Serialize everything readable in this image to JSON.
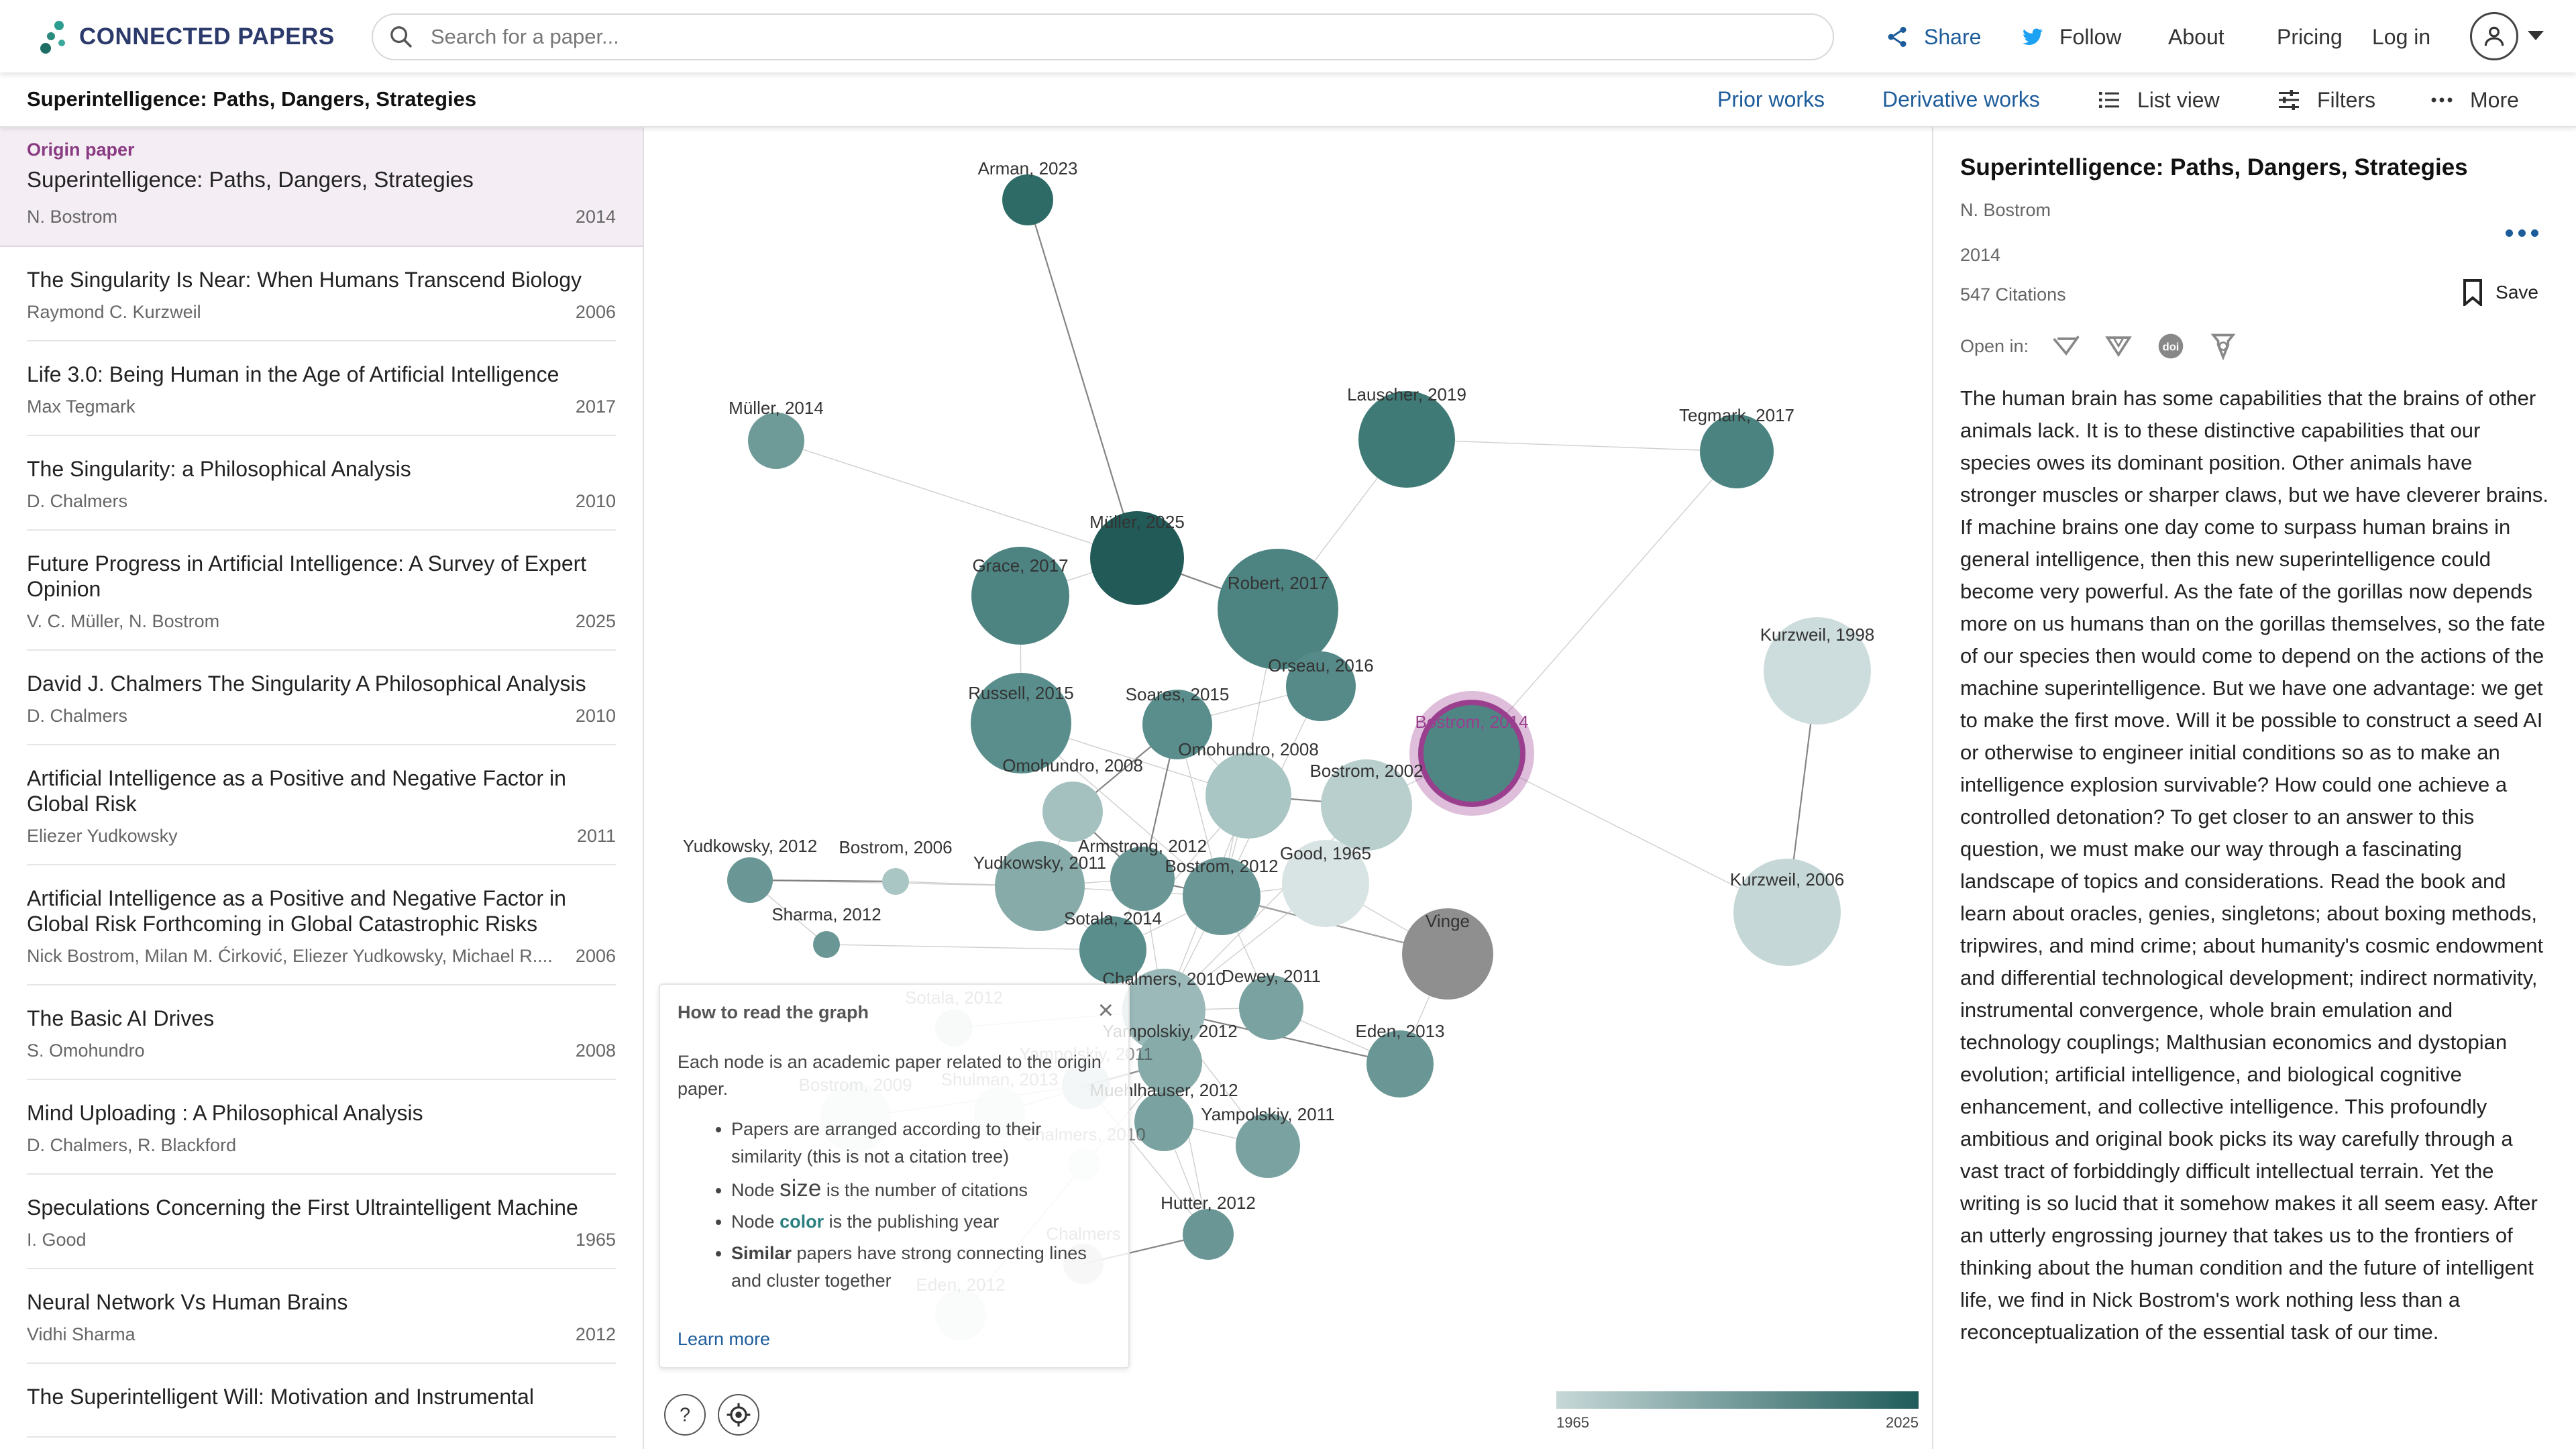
{
  "brand": {
    "name": "CONNECTED PAPERS",
    "color": "#2b3a6b",
    "accent": "#2a9d8f"
  },
  "search": {
    "placeholder": "Search for a paper..."
  },
  "nav": {
    "share": "Share",
    "follow": "Follow",
    "about": "About",
    "pricing": "Pricing",
    "login": "Log in"
  },
  "toolbar": {
    "paper_title": "Superintelligence: Paths, Dangers, Strategies",
    "prior": "Prior works",
    "derivative": "Derivative works",
    "list_view": "List view",
    "filters": "Filters",
    "more": "More"
  },
  "origin": {
    "label": "Origin paper",
    "title": "Superintelligence: Paths, Dangers, Strategies",
    "authors": "N. Bostrom",
    "year": "2014"
  },
  "papers": [
    {
      "title": "The Singularity Is Near: When Humans Transcend Biology",
      "authors": "Raymond C. Kurzweil",
      "year": "2006"
    },
    {
      "title": "Life 3.0: Being Human in the Age of Artificial Intelligence",
      "authors": "Max Tegmark",
      "year": "2017"
    },
    {
      "title": "The Singularity: a Philosophical Analysis",
      "authors": "D. Chalmers",
      "year": "2010"
    },
    {
      "title": "Future Progress in Artificial Intelligence: A Survey of Expert Opinion",
      "authors": "V. C. Müller, N. Bostrom",
      "year": "2025"
    },
    {
      "title": "David J. Chalmers The Singularity A Philosophical Analysis",
      "authors": "D. Chalmers",
      "year": "2010"
    },
    {
      "title": "Artificial Intelligence as a Positive and Negative Factor in Global Risk",
      "authors": "Eliezer Yudkowsky",
      "year": "2011"
    },
    {
      "title": "Artificial Intelligence as a Positive and Negative Factor in Global Risk Forthcoming in Global Catastrophic Risks",
      "authors": "Nick Bostrom, Milan M. Ćirković, Eliezer Yudkowsky, Michael R....",
      "year": "2006"
    },
    {
      "title": "The Basic AI Drives",
      "authors": "S. Omohundro",
      "year": "2008"
    },
    {
      "title": "Mind Uploading : A Philosophical Analysis",
      "authors": "D. Chalmers, R. Blackford",
      "year": ""
    },
    {
      "title": "Speculations Concerning the First Ultraintelligent Machine",
      "authors": "I. Good",
      "year": "1965"
    },
    {
      "title": "Neural Network Vs Human Brains",
      "authors": "Vidhi Sharma",
      "year": "2012"
    },
    {
      "title": "The Superintelligent Will: Motivation and Instrumental",
      "authors": "",
      "year": ""
    }
  ],
  "graph": {
    "nodes": [
      {
        "label": "Arman, 2023",
        "color": "#2e6b66"
      },
      {
        "label": "Müller, 2014",
        "color": "#6e9a98"
      },
      {
        "label": "Lauscher, 2019",
        "color": "#3f7a76"
      },
      {
        "label": "Tegmark, 2017",
        "color": "#4a8380"
      },
      {
        "label": "Müller, 2025",
        "color": "#225a58"
      },
      {
        "label": "Grace, 2017",
        "color": "#4d8482"
      },
      {
        "label": "Robert, 2017",
        "color": "#4d8482"
      },
      {
        "label": "Orseau, 2016",
        "color": "#558a88"
      },
      {
        "label": "Kurzweil, 1998",
        "color": "#cddcdc"
      },
      {
        "label": "Russell, 2015",
        "color": "#5a8e8c"
      },
      {
        "label": "Soares, 2015",
        "color": "#5a8e8c"
      },
      {
        "label": "Bostrom, 2014",
        "color": "#4f8684"
      },
      {
        "label": "Omohundro, 2008",
        "color": "#a4c1c0"
      },
      {
        "label": "Omohundro, 2008",
        "color": "#a9c5c4"
      },
      {
        "label": "Bostrom, 2002",
        "color": "#b9cfce"
      },
      {
        "label": "Good, 1965",
        "color": "#d8e4e3"
      },
      {
        "label": "Yudkowsky, 2012",
        "color": "#6a9795"
      },
      {
        "label": "Bostrom, 2006",
        "color": "#a9c5c4"
      },
      {
        "label": "Yudkowsky, 2011",
        "color": "#86aba9"
      },
      {
        "label": "Armstrong, 2012",
        "color": "#6a9795"
      },
      {
        "label": "Bostrom, 2012",
        "color": "#6a9795"
      },
      {
        "label": "Kurzweil, 2006",
        "color": "#c5d7d6"
      },
      {
        "label": "Sharma, 2012",
        "color": "#6a9795"
      },
      {
        "label": "Sotala, 2014",
        "color": "#5a8e8c"
      },
      {
        "label": "Vinge",
        "color": "#8f8f8f"
      },
      {
        "label": "Sotala, 2012",
        "color": "#c9dad9"
      },
      {
        "label": "Chalmers, 2010",
        "color": "#9ab9b8"
      },
      {
        "label": "Dewey, 2011",
        "color": "#7aa2a0"
      },
      {
        "label": "Eden, 2013",
        "color": "#6a9795"
      },
      {
        "label": "Yampolskiy, 2012",
        "color": "#86aba9"
      },
      {
        "label": "Yampolskiy, 2011",
        "color": "#a9c5c4"
      },
      {
        "label": "Bostrom, 2009",
        "color": "#d8e4e3"
      },
      {
        "label": "Shulman, 2013",
        "color": "#d8e4e3"
      },
      {
        "label": "Muehlhauser, 2012",
        "color": "#7aa2a0"
      },
      {
        "label": "Yampolskiy, 2011",
        "color": "#7aa2a0"
      },
      {
        "label": "Chalmers, 2010",
        "color": "#dde7e6"
      },
      {
        "label": "Hutter, 2012",
        "color": "#6a9795"
      },
      {
        "label": "Chalmers",
        "color": "#c4c4c4"
      },
      {
        "label": "Eden, 2012",
        "color": "#d8e4e3"
      }
    ],
    "howto": {
      "title": "How to read the graph",
      "intro": "Each node is an academic paper related to the origin paper.",
      "b1": "Papers are arranged according to their similarity (this is not a citation tree)",
      "b2_pre": "Node ",
      "b2_em": "size",
      "b2_post": " is the number of citations",
      "b3_pre": "Node ",
      "b3_em": "color",
      "b3_post": " is the publishing year",
      "b4_em": "Similar",
      "b4_post": " papers have strong connecting lines and cluster together",
      "learn": "Learn more"
    },
    "legend": {
      "min": "1965",
      "max": "2025",
      "low_color": "#c7d8d8",
      "high_color": "#1f5c5a"
    }
  },
  "details": {
    "title": "Superintelligence: Paths, Dangers, Strategies",
    "authors": "N. Bostrom",
    "year": "2014",
    "citations": "547 Citations",
    "save": "Save",
    "open_in": "Open in:",
    "abstract": "The human brain has some capabilities that the brains of other animals lack. It is to these distinctive capabilities that our species owes its dominant position. Other animals have stronger muscles or sharper claws, but we have cleverer brains. If machine brains one day come to surpass human brains in general intelligence, then this new superintelligence could become very powerful. As the fate of the gorillas now depends more on us humans than on the gorillas themselves, so the fate of our species then would come to depend on the actions of the machine superintelligence. But we have one advantage: we get to make the first move. Will it be possible to construct a seed AI or otherwise to engineer initial conditions so as to make an intelligence explosion survivable? How could one achieve a controlled detonation? To get closer to an answer to this question, we must make our way through a fascinating landscape of topics and considerations. Read the book and learn about oracles, genies, singletons; about boxing methods, tripwires, and mind crime; about humanity's cosmic endowment and differential technological development; indirect normativity, instrumental convergence, whole brain emulation and technology couplings; Malthusian economics and dystopian evolution; artificial intelligence, and biological cognitive enhancement, and collective intelligence. This profoundly ambitious and original book picks its way carefully through a vast tract of forbiddingly difficult intellectual terrain. Yet the writing is so lucid that it somehow makes it all seem easy. After an utterly engrossing journey that takes us to the frontiers of thinking about the human condition and the future of intelligent life, we find in Nick Bostrom's work nothing less than a reconceptualization of the essential task of our time."
  }
}
